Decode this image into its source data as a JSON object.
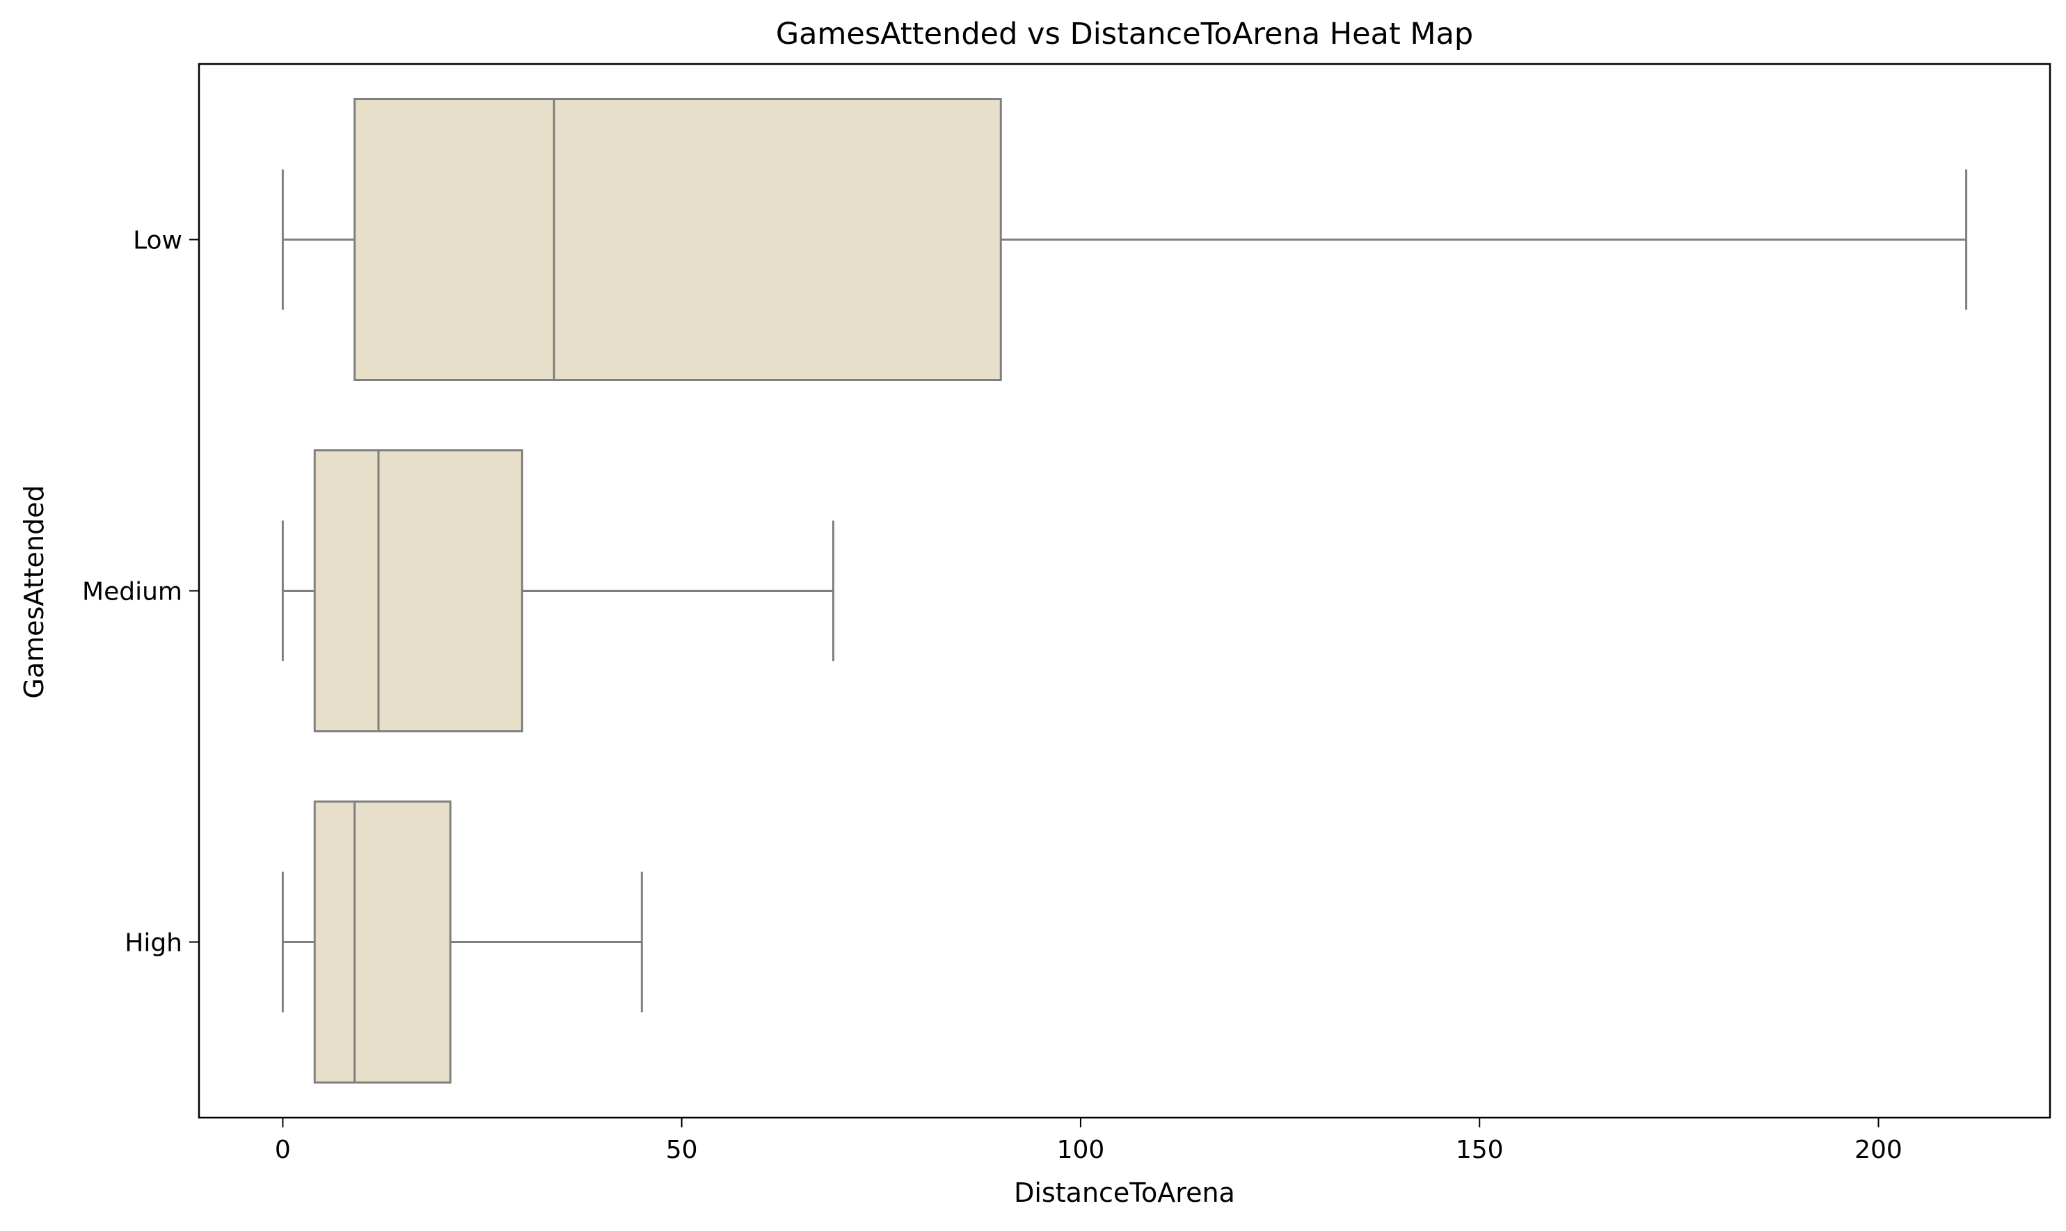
{
  "chart_data": {
    "type": "box",
    "orientation": "horizontal",
    "title": "GamesAttended vs DistanceToArena Heat Map",
    "xlabel": "DistanceToArena",
    "ylabel": "GamesAttended",
    "xlim": [
      -10.5,
      221.5
    ],
    "xticks": [
      0,
      50,
      100,
      150,
      200
    ],
    "xtick_labels": [
      "0",
      "50",
      "100",
      "150",
      "200"
    ],
    "categories": [
      "Low",
      "Medium",
      "High"
    ],
    "boxes": [
      {
        "category": "Low",
        "whisker_low": 0,
        "q1": 9,
        "median": 34,
        "q3": 90,
        "whisker_high": 211
      },
      {
        "category": "Medium",
        "whisker_low": 0,
        "q1": 4,
        "median": 12,
        "q3": 30,
        "whisker_high": 69
      },
      {
        "category": "High",
        "whisker_low": 0,
        "q1": 4,
        "median": 9,
        "q3": 21,
        "whisker_high": 45
      }
    ],
    "grid": false,
    "colors": {
      "box_fill": "#e8dfca",
      "box_edge": "#808080",
      "axes": "#000000",
      "background": "#ffffff"
    }
  }
}
